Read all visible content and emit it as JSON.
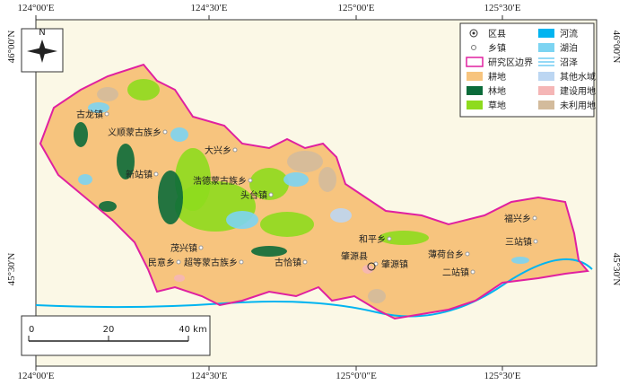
{
  "map": {
    "lon_labels_top": [
      "124°00′E",
      "124°30′E",
      "125°00′E",
      "125°30′E"
    ],
    "lon_labels_bottom": [
      "124°00′E",
      "124°30′E",
      "125°0′0″E",
      "125°30′E"
    ],
    "lat_labels_left": [
      "46°00′N",
      "45°30′N"
    ],
    "lat_labels_right": [
      "46°00′N",
      "45°30′N"
    ],
    "north": "N",
    "legend": [
      {
        "label": "区县"
      },
      {
        "label": "乡镇"
      },
      {
        "label": "研究区边界",
        "color": "#e020a0"
      },
      {
        "label": "耕地",
        "color": "#f7c47e"
      },
      {
        "label": "林地",
        "color": "#0b6b3a"
      },
      {
        "label": "草地",
        "color": "#8edb1e"
      },
      {
        "label": "河流",
        "color": "#00b4f0"
      },
      {
        "label": "湖泊",
        "color": "#7cd4f2"
      },
      {
        "label": "沼泽",
        "color": "#4cc0f0"
      },
      {
        "label": "其他水域",
        "color": "#bcd6f2"
      },
      {
        "label": "建设用地",
        "color": "#f5b6b6"
      },
      {
        "label": "未利用地",
        "color": "#d3bb9c"
      }
    ],
    "places": [
      "古龙镇",
      "义顺蒙古族乡",
      "大兴乡",
      "新站镇",
      "浩德蒙古族乡",
      "头台镇",
      "福兴乡",
      "和平乡",
      "三站镇",
      "茂兴镇",
      "薄荷台乡",
      "民意乡",
      "超等蒙古族乡",
      "古恰镇",
      "肇源镇",
      "二站镇"
    ],
    "county": "肇源县",
    "scale_labels": [
      "0",
      "20",
      "40 km"
    ]
  }
}
